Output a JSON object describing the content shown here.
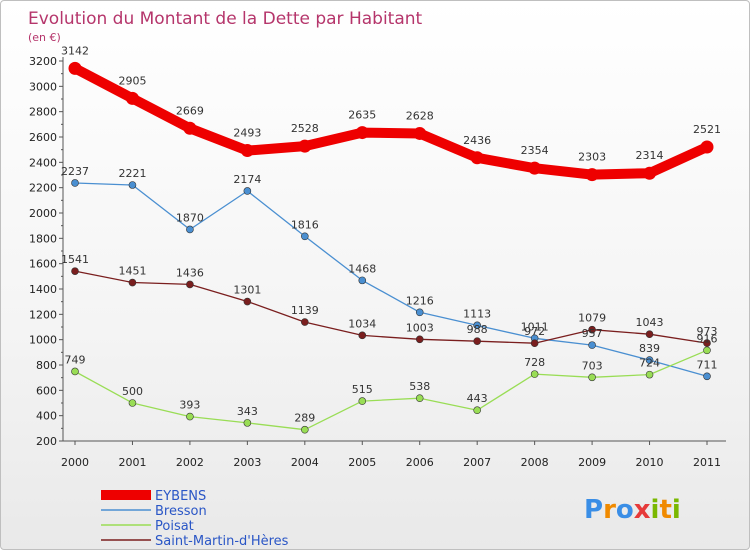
{
  "chart_data": {
    "type": "line",
    "title": "Evolution du Montant de la Dette par Habitant",
    "unit_label": "(en €)",
    "xlabel": "",
    "ylabel": "",
    "ylim": [
      200,
      3200
    ],
    "y_ticks": [
      200,
      400,
      600,
      800,
      1000,
      1200,
      1400,
      1600,
      1800,
      2000,
      2200,
      2400,
      2600,
      2800,
      3000,
      3200
    ],
    "x": [
      "2000",
      "2001",
      "2002",
      "2003",
      "2004",
      "2005",
      "2006",
      "2007",
      "2008",
      "2009",
      "2010",
      "2011"
    ],
    "grid": false,
    "legend_position": "bottom-left",
    "series": [
      {
        "name": "EYBENS",
        "color": "#ee0000",
        "values": [
          3142,
          2905,
          2669,
          2493,
          2528,
          2635,
          2628,
          2436,
          2354,
          2303,
          2314,
          2521
        ]
      },
      {
        "name": "Bresson",
        "color": "#4a8fd1",
        "values": [
          2237,
          2221,
          1870,
          2174,
          1816,
          1468,
          1216,
          1113,
          1011,
          957,
          839,
          711
        ]
      },
      {
        "name": "Poisat",
        "color": "#99dd55",
        "values": [
          749,
          500,
          393,
          343,
          289,
          515,
          538,
          443,
          728,
          703,
          724,
          916
        ]
      },
      {
        "name": "Saint-Martin-d'Hères",
        "color": "#7a1e1e",
        "values": [
          1541,
          1451,
          1436,
          1301,
          1139,
          1034,
          1003,
          988,
          972,
          1079,
          1043,
          973
        ]
      }
    ],
    "data_labels": [
      [
        "3142",
        "2905",
        "2669",
        "2493",
        "2528",
        "2635",
        "2628",
        "2436",
        "2354",
        "2303",
        "2314",
        "2521"
      ],
      [
        "2237",
        "2221",
        "1870",
        "2174",
        "1816",
        "1468",
        "1216",
        "1113",
        "1011",
        "957",
        "839",
        "711"
      ],
      [
        "749",
        "500",
        "393",
        "343",
        "289",
        "515",
        "538",
        "443",
        "728",
        "703",
        "724",
        "916"
      ],
      [
        "1541",
        "1451",
        "1436",
        "1301",
        "1139",
        "1034",
        "1003",
        "988",
        "972",
        "1079",
        "1043",
        "973"
      ]
    ]
  },
  "logo": {
    "text": "Proxiti",
    "letters": [
      "P",
      "r",
      "o",
      "x",
      "i",
      "t",
      "i"
    ],
    "colors": [
      "#3a8ee6",
      "#f08a00",
      "#3a8ee6",
      "#e63a3a",
      "#7ab800",
      "#f08a00",
      "#7ab800"
    ]
  }
}
